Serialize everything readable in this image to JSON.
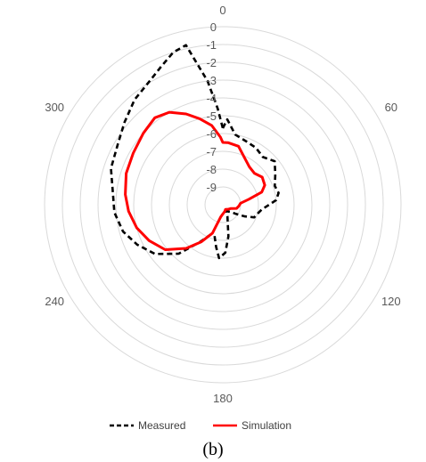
{
  "chart_data": {
    "type": "line",
    "subtype": "polar",
    "caption": "(b)",
    "radial_axis": {
      "min": -10,
      "max": 0,
      "ticks": [
        "0",
        "-1",
        "-2",
        "-3",
        "-4",
        "-5",
        "-6",
        "-7",
        "-8",
        "-9"
      ]
    },
    "angular_axis": {
      "direction": "clockwise",
      "zero_at": "top",
      "ticks": [
        "0",
        "60",
        "120",
        "180",
        "240",
        "300"
      ],
      "tick_values": [
        0,
        60,
        120,
        180,
        240,
        300
      ]
    },
    "grid": true,
    "legend": {
      "position": "bottom"
    },
    "series": [
      {
        "name": "Measured",
        "color": "#000000",
        "line_style": "dashed",
        "points": [
          [
            0,
            -5.7
          ],
          [
            3,
            -5.2
          ],
          [
            10,
            -6.0
          ],
          [
            20,
            -6.2
          ],
          [
            30,
            -6.3
          ],
          [
            40,
            -6.5
          ],
          [
            50,
            -6.2
          ],
          [
            60,
            -6.6
          ],
          [
            70,
            -6.9
          ],
          [
            78,
            -6.8
          ],
          [
            85,
            -7.0
          ],
          [
            90,
            -7.4
          ],
          [
            97,
            -7.8
          ],
          [
            105,
            -8.0
          ],
          [
            112,
            -8.1
          ],
          [
            118,
            -8.6
          ],
          [
            125,
            -9.1
          ],
          [
            132,
            -9.4
          ],
          [
            140,
            -9.5
          ],
          [
            150,
            -9.6
          ],
          [
            158,
            -9.3
          ],
          [
            164,
            -9.0
          ],
          [
            170,
            -8.2
          ],
          [
            177,
            -7.3
          ],
          [
            184,
            -7.0
          ],
          [
            189,
            -7.6
          ],
          [
            195,
            -8.2
          ],
          [
            202,
            -8.2
          ],
          [
            212,
            -7.5
          ],
          [
            222,
            -6.3
          ],
          [
            234,
            -5.3
          ],
          [
            245,
            -4.7
          ],
          [
            255,
            -4.2
          ],
          [
            266,
            -3.9
          ],
          [
            276,
            -3.8
          ],
          [
            288,
            -3.4
          ],
          [
            300,
            -3.2
          ],
          [
            310,
            -2.8
          ],
          [
            320,
            -2.3
          ],
          [
            330,
            -1.9
          ],
          [
            336,
            -1.5
          ],
          [
            342,
            -1.0
          ],
          [
            347,
            -0.8
          ],
          [
            353,
            -3.0
          ],
          [
            357,
            -4.6
          ],
          [
            360,
            -5.7
          ]
        ]
      },
      {
        "name": "Simulation",
        "color": "#ff0000",
        "line_style": "solid",
        "points": [
          [
            0,
            -6.5
          ],
          [
            5,
            -6.5
          ],
          [
            15,
            -6.6
          ],
          [
            25,
            -7.1
          ],
          [
            35,
            -7.4
          ],
          [
            45,
            -7.5
          ],
          [
            55,
            -7.3
          ],
          [
            65,
            -7.4
          ],
          [
            72,
            -7.7
          ],
          [
            78,
            -8.5
          ],
          [
            85,
            -9.0
          ],
          [
            95,
            -9.1
          ],
          [
            105,
            -9.2
          ],
          [
            115,
            -9.5
          ],
          [
            130,
            -9.6
          ],
          [
            150,
            -9.7
          ],
          [
            165,
            -9.6
          ],
          [
            178,
            -9.5
          ],
          [
            190,
            -9.3
          ],
          [
            200,
            -8.3
          ],
          [
            210,
            -7.6
          ],
          [
            220,
            -6.8
          ],
          [
            232,
            -5.9
          ],
          [
            244,
            -5.4
          ],
          [
            255,
            -5.0
          ],
          [
            266,
            -4.7
          ],
          [
            276,
            -4.5
          ],
          [
            288,
            -4.3
          ],
          [
            300,
            -4.2
          ],
          [
            312,
            -4.0
          ],
          [
            322,
            -3.8
          ],
          [
            330,
            -4.0
          ],
          [
            338,
            -4.5
          ],
          [
            345,
            -5.0
          ],
          [
            352,
            -5.5
          ],
          [
            358,
            -6.2
          ],
          [
            360,
            -6.5
          ]
        ]
      }
    ]
  }
}
